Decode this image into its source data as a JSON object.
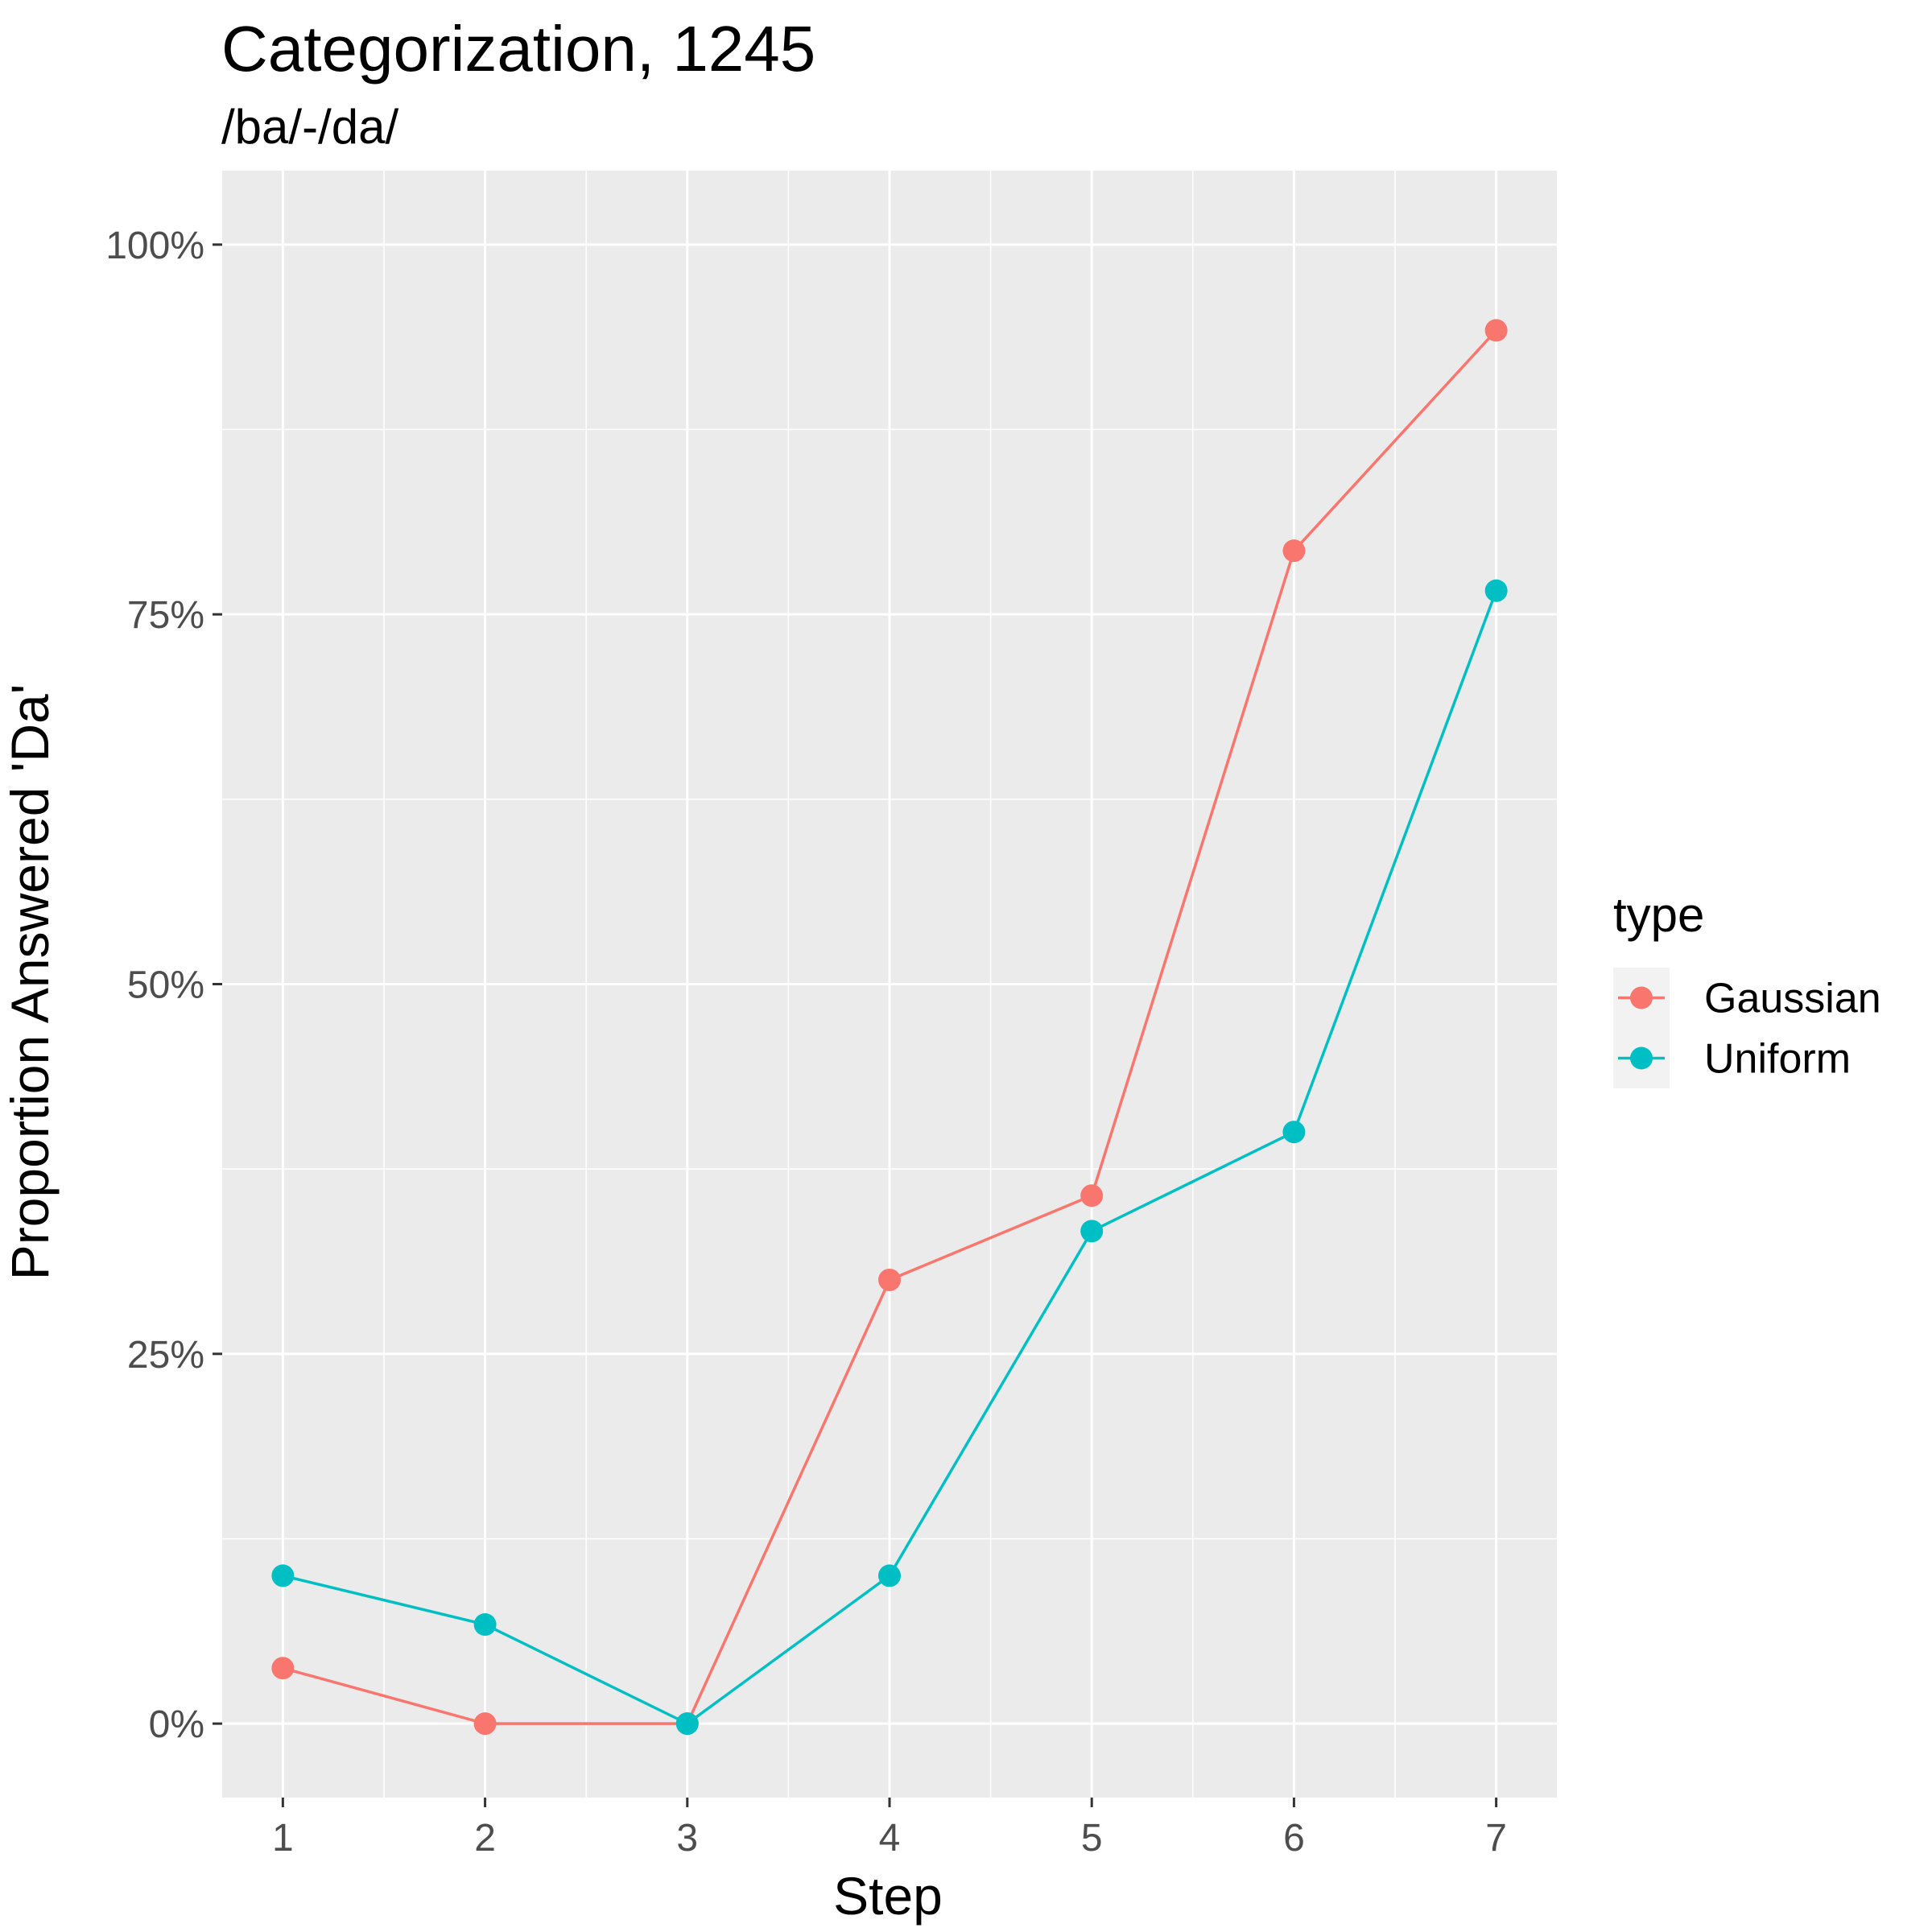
{
  "chart_data": {
    "type": "line",
    "title": "Categorization, 1245",
    "subtitle": "/ba/-/da/",
    "xlabel": "Step",
    "ylabel": "Proportion Answered 'Da'",
    "x": [
      1,
      2,
      3,
      4,
      5,
      6,
      7
    ],
    "x_tick_labels": [
      "1",
      "2",
      "3",
      "4",
      "5",
      "6",
      "7"
    ],
    "xlim": [
      0.7,
      7.3
    ],
    "ylim": [
      -0.05,
      1.05
    ],
    "y_ticks": [
      0,
      0.25,
      0.5,
      0.75,
      1.0
    ],
    "y_tick_labels": [
      "0%",
      "25%",
      "50%",
      "75%",
      "100%"
    ],
    "grid": true,
    "legend": {
      "title": "type",
      "placement": "right"
    },
    "series": [
      {
        "name": "Gaussian",
        "color": "#F8766D",
        "values": [
          0.0375,
          0.0,
          0.0,
          0.3,
          0.357,
          0.793,
          0.942
        ]
      },
      {
        "name": "Uniform",
        "color": "#00BFC4",
        "values": [
          0.1,
          0.067,
          0.0,
          0.1,
          0.333,
          0.4,
          0.766
        ]
      }
    ]
  }
}
